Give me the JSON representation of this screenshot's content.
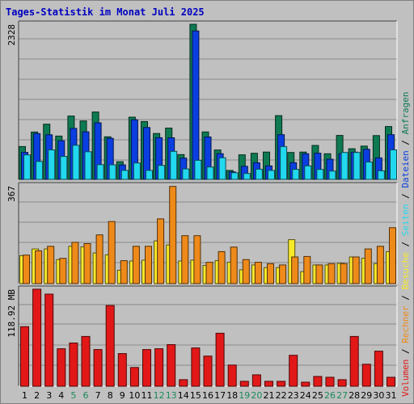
{
  "chart_data": {
    "type": "bar",
    "title": "Tages-Statistik im Monat Juli 2025",
    "categories": [
      "1",
      "2",
      "3",
      "4",
      "5",
      "6",
      "7",
      "8",
      "9",
      "10",
      "11",
      "12",
      "13",
      "14",
      "15",
      "16",
      "17",
      "18",
      "19",
      "20",
      "21",
      "22",
      "23",
      "24",
      "25",
      "26",
      "27",
      "28",
      "29",
      "30",
      "31"
    ],
    "weekend_days": [
      "5",
      "6",
      "12",
      "13",
      "19",
      "20",
      "26",
      "27"
    ],
    "colors": {
      "title": "#0000c0",
      "anfragen": "#0e7a52",
      "dateien": "#0a3ee0",
      "seiten": "#22d8ee",
      "besuche": "#f7e92a",
      "rechner": "#ee8a1a",
      "volumen": "#e21818",
      "weekend_label": "#1a8a5a",
      "weekday_label": "#000000"
    },
    "panels": [
      {
        "name": "hits",
        "ymax_label": "2328",
        "ylim": [
          0,
          2328
        ],
        "series": [
          {
            "key": "anfragen",
            "label": "Anfragen",
            "values": [
              492,
              711,
              828,
              650,
              951,
              877,
              1011,
              639,
              265,
              934,
              868,
              689,
              770,
              372,
              2328,
              712,
              441,
              134,
              368,
              392,
              410,
              957,
              404,
              410,
              509,
              384,
              660,
              460,
              500,
              657,
              793
            ]
          },
          {
            "key": "dateien",
            "label": "Dateien",
            "values": [
              405,
              688,
              669,
              579,
              765,
              714,
              849,
              616,
              217,
              895,
              779,
              626,
              624,
              319,
              2227,
              637,
              386,
              113,
              196,
              250,
              202,
              670,
              251,
              384,
              393,
              303,
              385,
              409,
              452,
              322,
              671
            ]
          },
          {
            "key": "seiten",
            "label": "Seiten",
            "values": [
              367,
              269,
              443,
              344,
              512,
              415,
              221,
              218,
              134,
              246,
              134,
              210,
              421,
              156,
              286,
              185,
              324,
              99,
              88,
              153,
              135,
              492,
              150,
              203,
              149,
              125,
              404,
              404,
              261,
              129,
              442
            ]
          }
        ]
      },
      {
        "name": "visits",
        "ymax_label": "367",
        "ylim": [
          0,
          367
        ],
        "series": [
          {
            "key": "besuche",
            "label": "Besuche",
            "values": [
              105,
              130,
              130,
              90,
              140,
              138,
              115,
              108,
              50,
              85,
              88,
              160,
              145,
              85,
              88,
              68,
              86,
              80,
              52,
              70,
              60,
              60,
              165,
              45,
              70,
              70,
              76,
              100,
              95,
              75,
              120
            ]
          },
          {
            "key": "rechner",
            "label": "Rechner",
            "values": [
              107,
              123,
              140,
              95,
              155,
              150,
              183,
              233,
              86,
              140,
              140,
              243,
              365,
              180,
              180,
              80,
              120,
              137,
              90,
              80,
              75,
              70,
              100,
              102,
              70,
              75,
              75,
              100,
              130,
              140,
              210
            ]
          }
        ]
      },
      {
        "name": "volume",
        "ymax_label": "118.92 MB",
        "ylim": [
          0,
          118.92
        ],
        "series": [
          {
            "key": "volumen",
            "label": "Volumen",
            "values": [
              73,
              119,
              113,
              46,
              53,
              61,
              45,
              99,
              40,
              23,
              45,
              46,
              51,
              8,
              47,
              37,
              65,
              26,
              6,
              14,
              6,
              6,
              38,
              5,
              12,
              11,
              8,
              61,
              27,
              43,
              11
            ]
          }
        ]
      }
    ],
    "legend_segments": [
      {
        "key": "volumen",
        "text": "Volumen"
      },
      {
        "key": "sep",
        "text": " / "
      },
      {
        "key": "rechner",
        "text": "Rechner"
      },
      {
        "key": "sep",
        "text": " / "
      },
      {
        "key": "besuche",
        "text": "Besuche"
      },
      {
        "key": "sep",
        "text": " / "
      },
      {
        "key": "seiten",
        "text": "Seiten"
      },
      {
        "key": "sep",
        "text": " / "
      },
      {
        "key": "dateien",
        "text": "Dateien"
      },
      {
        "key": "sep",
        "text": " / "
      },
      {
        "key": "anfragen",
        "text": "Anfragen"
      }
    ]
  }
}
